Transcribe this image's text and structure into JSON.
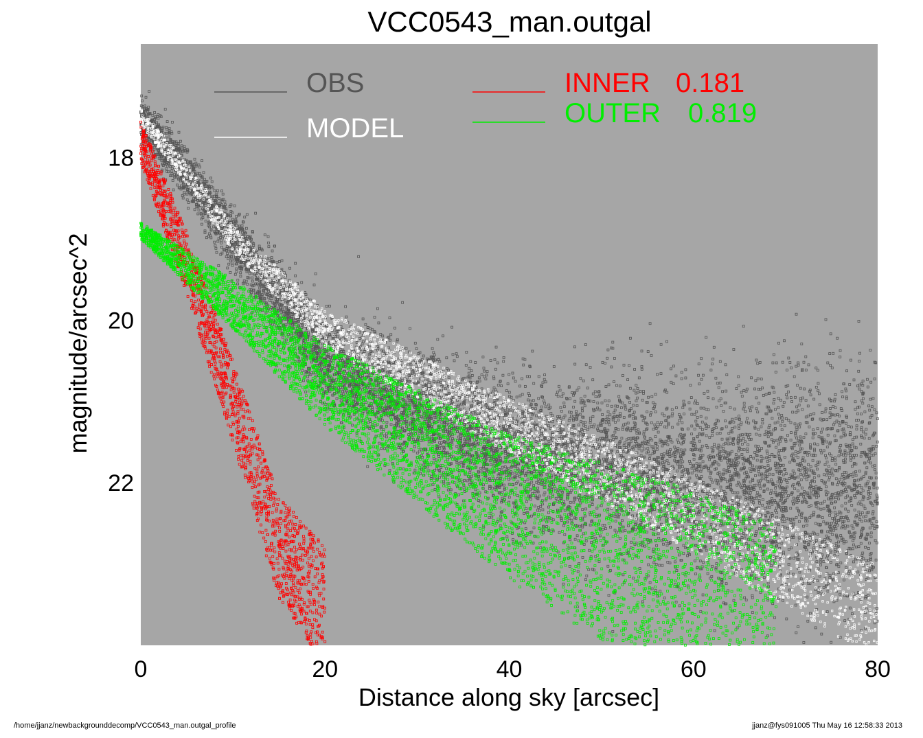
{
  "chart_data": {
    "type": "scatter",
    "title": "VCC0543_man.outgal",
    "xlabel": "Distance along sky [arcsec]",
    "ylabel": "magnitude/arcsec^2",
    "xlim": [
      0,
      80
    ],
    "ylim": [
      24.0,
      16.6
    ],
    "x_ticks": [
      "0",
      "20",
      "40",
      "60",
      "80"
    ],
    "y_ticks": [
      "18",
      "20",
      "22"
    ],
    "y_tick_values": [
      18,
      20,
      22
    ],
    "inverted_y": true,
    "background": "#a6a6a6",
    "legend": {
      "obs": {
        "label": "OBS",
        "color": "#555555"
      },
      "model": {
        "label": "MODEL",
        "color": "#ffffff"
      },
      "inner": {
        "label": "INNER",
        "value": "0.181",
        "color": "#ff0000"
      },
      "outer": {
        "label": "OUTER",
        "value": "0.819",
        "color": "#00ee00"
      }
    },
    "series": [
      {
        "name": "OBS",
        "color": "#555555",
        "description_points": [
          [
            0,
            17.5
          ],
          [
            5,
            18.2
          ],
          [
            10,
            19.0
          ],
          [
            20,
            20.5
          ],
          [
            40,
            21.6
          ],
          [
            60,
            22.0
          ],
          [
            80,
            22.1
          ]
        ]
      },
      {
        "name": "MODEL",
        "color": "#ffffff",
        "description_points": [
          [
            0,
            17.5
          ],
          [
            5,
            18.2
          ],
          [
            10,
            19.0
          ],
          [
            20,
            20.1
          ],
          [
            30,
            20.7
          ],
          [
            40,
            21.3
          ],
          [
            60,
            22.4
          ],
          [
            80,
            23.6
          ]
        ]
      },
      {
        "name": "INNER",
        "color": "#ff0000",
        "description_points": [
          [
            0,
            17.8
          ],
          [
            5,
            19.3
          ],
          [
            10,
            21.0
          ],
          [
            15,
            22.8
          ],
          [
            20,
            23.5
          ]
        ]
      },
      {
        "name": "OUTER",
        "color": "#00ee00",
        "description_points": [
          [
            0,
            18.9
          ],
          [
            10,
            19.8
          ],
          [
            20,
            20.8
          ],
          [
            40,
            22.3
          ],
          [
            60,
            23.4
          ],
          [
            69,
            24.0
          ]
        ]
      }
    ]
  },
  "footer": {
    "left": "/home/jjanz/newbackgrounddecomp/VCC0543_man.outgal_profile",
    "right": "jjanz@fys091005  Thu May 16 12:58:33 2013"
  }
}
